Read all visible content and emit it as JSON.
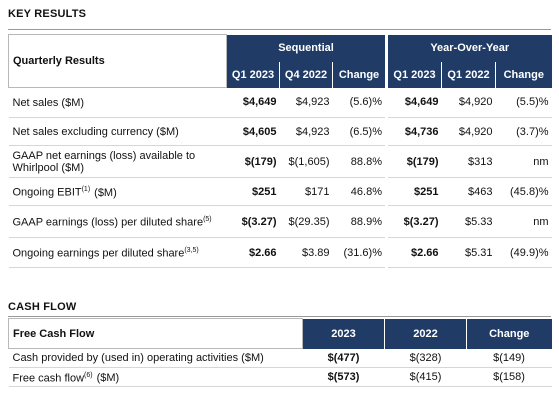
{
  "key_results": {
    "title": "KEY RESULTS",
    "row_header": "Quarterly Results",
    "groups": [
      {
        "title": "Sequential",
        "columns": [
          "Q1 2023",
          "Q4 2022",
          "Change"
        ]
      },
      {
        "title": "Year-Over-Year",
        "columns": [
          "Q1 2023",
          "Q1 2022",
          "Change"
        ]
      }
    ],
    "rows": [
      {
        "label": "Net sales ($M)",
        "values": [
          "$4,649",
          "$4,923",
          "(5.6)%",
          "$4,649",
          "$4,920",
          "(5.5)%"
        ]
      },
      {
        "label": "Net sales excluding currency ($M)",
        "values": [
          "$4,605",
          "$4,923",
          "(6.5)%",
          "$4,736",
          "$4,920",
          "(3.7)%"
        ]
      },
      {
        "label": "GAAP net earnings (loss) available to Whirlpool ($M)",
        "values": [
          "$(179)",
          "$(1,605)",
          "88.8%",
          "$(179)",
          "$313",
          "nm"
        ]
      },
      {
        "label": "Ongoing EBIT",
        "note": "(1)",
        "label_end": "($M)",
        "values": [
          "$251",
          "$171",
          "46.8%",
          "$251",
          "$463",
          "(45.8)%"
        ]
      },
      {
        "label": "GAAP earnings (loss) per diluted share",
        "note": "(5)",
        "values": [
          "$(3.27)",
          "$(29.35)",
          "88.9%",
          "$(3.27)",
          "$5.33",
          "nm"
        ]
      },
      {
        "label": "Ongoing earnings per diluted share",
        "note": "(3,5)",
        "values": [
          "$2.66",
          "$3.89",
          "(31.6)%",
          "$2.66",
          "$5.31",
          "(49.9)%"
        ]
      }
    ]
  },
  "cash_flow": {
    "title": "CASH FLOW",
    "row_header": "Free Cash Flow",
    "columns": [
      "2023",
      "2022",
      "Change"
    ],
    "rows": [
      {
        "label": "Cash provided by (used in) operating activities ($M)",
        "values": [
          "$(477)",
          "$(328)",
          "$(149)"
        ]
      },
      {
        "label": "Free cash flow",
        "note": "(6)",
        "label_end": "($M)",
        "values": [
          "$(573)",
          "$(415)",
          "$(158)"
        ]
      }
    ]
  }
}
